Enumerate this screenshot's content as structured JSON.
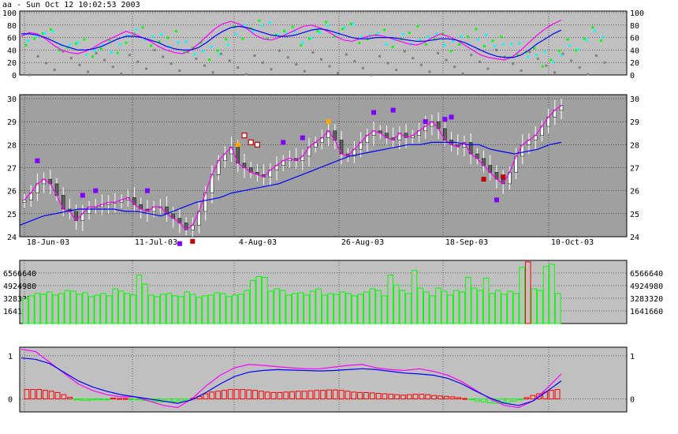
{
  "title": "aa - Sun Oct 12 10:02:53 2003",
  "colors": {
    "panel_bg": "#c0c0c0",
    "price_bg": "#a0a0a0",
    "grid": "#000000",
    "magenta": "#ff00ff",
    "blue": "#0000ff",
    "green": "#00ff00",
    "cyan": "#00ffff",
    "grey_dot": "#808080",
    "purple": "#8000ff",
    "orange": "#ffa500",
    "red": "#c00000",
    "volume_bar": "#00ff00",
    "macd_pos": "#ff0000",
    "macd_neg": "#00ff00"
  },
  "chart_data": [
    {
      "panel": "oscillator",
      "type": "line",
      "ylim": [
        0,
        100
      ],
      "y_ticks": [
        "100",
        "80",
        "60",
        "40",
        "20",
        "0"
      ],
      "series": [
        {
          "color": "#ff00ff",
          "values": [
            62,
            68,
            66,
            58,
            48,
            40,
            36,
            34,
            38,
            44,
            52,
            58,
            64,
            70,
            66,
            60,
            54,
            46,
            40,
            36,
            34,
            40,
            50,
            62,
            74,
            82,
            86,
            82,
            74,
            64,
            58,
            56,
            60,
            66,
            72,
            78,
            80,
            76,
            70,
            62,
            56,
            54,
            58,
            62,
            64,
            62,
            58,
            54,
            50,
            48,
            52,
            60,
            66,
            62,
            56,
            48,
            40,
            32,
            28,
            26,
            24,
            30,
            40,
            52,
            64,
            74,
            82,
            88
          ]
        },
        {
          "color": "#0000ff",
          "values": [
            66,
            66,
            64,
            60,
            54,
            48,
            44,
            40,
            40,
            42,
            46,
            52,
            58,
            62,
            62,
            60,
            56,
            52,
            46,
            42,
            40,
            40,
            44,
            52,
            62,
            70,
            76,
            78,
            76,
            72,
            68,
            64,
            62,
            62,
            64,
            68,
            72,
            74,
            72,
            68,
            64,
            60,
            58,
            58,
            60,
            60,
            60,
            58,
            56,
            54,
            54,
            56,
            58,
            58,
            56,
            52,
            46,
            40,
            34,
            30,
            28,
            28,
            32,
            40,
            50,
            58,
            66,
            72
          ]
        }
      ]
    },
    {
      "panel": "price",
      "type": "candlestick",
      "ylim": [
        24,
        30
      ],
      "y_ticks": [
        "30",
        "29",
        "28",
        "27",
        "26",
        "25",
        "24"
      ],
      "x_labels": [
        "18-Jun-03",
        "11-Jul-03",
        "4-Aug-03",
        "26-Aug-03",
        "18-Sep-03",
        "10-Oct-03"
      ],
      "close": [
        25.6,
        25.9,
        26.3,
        26.5,
        26.3,
        25.8,
        25.2,
        25.1,
        24.7,
        25.0,
        25.3,
        25.3,
        25.4,
        25.5,
        25.5,
        25.6,
        25.7,
        25.4,
        25.2,
        25.1,
        25.3,
        25.3,
        25.0,
        24.8,
        24.6,
        24.3,
        24.5,
        25.1,
        25.9,
        26.7,
        27.3,
        27.6,
        27.9,
        27.2,
        27.0,
        26.8,
        26.7,
        26.6,
        26.9,
        27.1,
        27.3,
        27.4,
        27.3,
        27.5,
        27.9,
        28.1,
        28.3,
        28.6,
        28.2,
        27.6,
        27.5,
        27.8,
        28.1,
        28.4,
        28.6,
        28.5,
        28.3,
        28.2,
        28.5,
        28.3,
        28.4,
        28.6,
        28.8,
        29.0,
        28.7,
        28.2,
        28.0,
        27.9,
        28.1,
        27.6,
        27.4,
        27.1,
        26.8,
        26.5,
        26.3,
        26.8,
        27.5,
        28.0,
        28.2,
        28.4,
        28.8,
        29.2,
        29.5,
        29.7
      ],
      "ma_series": {
        "color": "#0000ff",
        "values": [
          24.5,
          24.7,
          24.9,
          25.0,
          25.1,
          25.2,
          25.2,
          25.2,
          25.2,
          25.1,
          25.1,
          25.0,
          24.9,
          25.1,
          25.3,
          25.5,
          25.6,
          25.7,
          25.9,
          26.0,
          26.1,
          26.2,
          26.3,
          26.5,
          26.7,
          26.9,
          27.1,
          27.3,
          27.5,
          27.6,
          27.7,
          27.8,
          27.9,
          28.0,
          28.0,
          28.1,
          28.1,
          28.1,
          28.0,
          28.0,
          27.8,
          27.7,
          27.6,
          27.7,
          27.8,
          28.0,
          28.1
        ]
      },
      "markers": [
        {
          "kind": "square",
          "color": "#8000ff",
          "x": 2,
          "y": 27.3
        },
        {
          "kind": "square",
          "color": "#8000ff",
          "x": 9,
          "y": 25.8
        },
        {
          "kind": "square",
          "color": "#8000ff",
          "x": 11,
          "y": 26.0
        },
        {
          "kind": "square",
          "color": "#8000ff",
          "x": 19,
          "y": 26.0
        },
        {
          "kind": "square",
          "color": "#8000ff",
          "x": 24,
          "y": 23.7
        },
        {
          "kind": "square",
          "color": "#c00000",
          "x": 26,
          "y": 23.8
        },
        {
          "kind": "square",
          "color": "#ffa500",
          "x": 33,
          "y": 28.0
        },
        {
          "kind": "open-square",
          "color": "#c00000",
          "x": 34,
          "y": 28.4
        },
        {
          "kind": "open-square",
          "color": "#c00000",
          "x": 35,
          "y": 28.1
        },
        {
          "kind": "open-square",
          "color": "#c00000",
          "x": 36,
          "y": 28.0
        },
        {
          "kind": "square",
          "color": "#8000ff",
          "x": 40,
          "y": 28.1
        },
        {
          "kind": "square",
          "color": "#8000ff",
          "x": 43,
          "y": 28.3
        },
        {
          "kind": "square",
          "color": "#ffa500",
          "x": 47,
          "y": 29.0
        },
        {
          "kind": "square",
          "color": "#8000ff",
          "x": 54,
          "y": 29.4
        },
        {
          "kind": "square",
          "color": "#8000ff",
          "x": 57,
          "y": 29.5
        },
        {
          "kind": "square",
          "color": "#8000ff",
          "x": 62,
          "y": 29.0
        },
        {
          "kind": "square",
          "color": "#8000ff",
          "x": 65,
          "y": 29.1
        },
        {
          "kind": "square",
          "color": "#8000ff",
          "x": 66,
          "y": 29.2
        },
        {
          "kind": "square",
          "color": "#c00000",
          "x": 71,
          "y": 26.5
        },
        {
          "kind": "square",
          "color": "#c00000",
          "x": 74,
          "y": 26.6
        },
        {
          "kind": "square",
          "color": "#8000ff",
          "x": 73,
          "y": 25.6
        }
      ]
    },
    {
      "panel": "volume",
      "type": "bar",
      "ylim": [
        0,
        8200000
      ],
      "y_ticks": [
        "6566640",
        "4924980",
        "3283320",
        "1641660"
      ],
      "values": [
        3200000,
        3600000,
        3900000,
        3800000,
        4100000,
        3700000,
        3900000,
        4300000,
        4200000,
        3800000,
        4000000,
        3500000,
        3700000,
        3900000,
        3600000,
        4500000,
        4200000,
        3900000,
        3700000,
        6300000,
        5100000,
        3700000,
        3500000,
        3800000,
        3900000,
        3600000,
        3500000,
        4100000,
        3800000,
        3400000,
        3600000,
        3700000,
        4000000,
        3900000,
        3500000,
        3700000,
        3800000,
        4300000,
        5600000,
        6100000,
        6000000,
        4200000,
        4500000,
        4300000,
        3700000,
        3900000,
        4000000,
        3700000,
        4200000,
        4500000,
        3700000,
        3900000,
        3800000,
        4100000,
        3900000,
        3600000,
        3800000,
        4100000,
        4500000,
        4300000,
        3600000,
        6300000,
        5000000,
        4300000,
        3900000,
        6900000,
        4600000,
        4100000,
        3600000,
        4600000,
        4200000,
        3700000,
        4300000,
        4100000,
        6000000,
        4600000,
        4300000,
        5900000,
        3900000,
        4300000,
        3800000,
        4200000,
        3900000,
        7300000,
        8000000,
        4500000,
        4300000,
        7400000,
        7700000,
        3900000
      ],
      "highlight": [
        {
          "index": 84,
          "color": "#ff0000"
        }
      ]
    },
    {
      "panel": "macd",
      "type": "line",
      "ylim": [
        -0.3,
        1.2
      ],
      "y_ticks": [
        "1",
        "0"
      ],
      "series": [
        {
          "color": "#ff00ff",
          "values": [
            1.15,
            1.1,
            0.85,
            0.6,
            0.35,
            0.2,
            0.1,
            0.05,
            0.05,
            -0.05,
            -0.15,
            -0.2,
            0.0,
            0.3,
            0.55,
            0.72,
            0.8,
            0.78,
            0.75,
            0.72,
            0.7,
            0.7,
            0.74,
            0.78,
            0.8,
            0.72,
            0.68,
            0.66,
            0.7,
            0.64,
            0.55,
            0.4,
            0.2,
            0.0,
            -0.15,
            -0.2,
            -0.05,
            0.25,
            0.58
          ]
        },
        {
          "color": "#0000ff",
          "values": [
            0.95,
            0.92,
            0.82,
            0.62,
            0.42,
            0.28,
            0.18,
            0.1,
            0.05,
            0.0,
            -0.05,
            -0.1,
            -0.02,
            0.15,
            0.35,
            0.52,
            0.62,
            0.66,
            0.68,
            0.67,
            0.66,
            0.65,
            0.66,
            0.68,
            0.7,
            0.68,
            0.64,
            0.6,
            0.58,
            0.55,
            0.48,
            0.35,
            0.18,
            0.02,
            -0.1,
            -0.15,
            -0.05,
            0.18,
            0.42
          ]
        }
      ],
      "histogram": [
        0.22,
        0.22,
        0.22,
        0.2,
        0.18,
        0.15,
        0.1,
        0.04,
        -0.02,
        -0.03,
        -0.03,
        -0.02,
        -0.01,
        -0.01,
        0.02,
        0.01,
        0.01,
        -0.02,
        -0.02,
        -0.03,
        -0.05,
        -0.06,
        -0.07,
        -0.06,
        -0.06,
        -0.05,
        -0.04,
        0.02,
        0.06,
        0.12,
        0.16,
        0.18,
        0.2,
        0.22,
        0.22,
        0.22,
        0.21,
        0.2,
        0.18,
        0.16,
        0.15,
        0.15,
        0.16,
        0.17,
        0.18,
        0.18,
        0.19,
        0.2,
        0.2,
        0.21,
        0.21,
        0.2,
        0.18,
        0.16,
        0.15,
        0.15,
        0.14,
        0.13,
        0.12,
        0.11,
        0.1,
        0.09,
        0.1,
        0.11,
        0.11,
        0.1,
        0.08,
        0.07,
        0.06,
        0.05,
        0.03,
        0.01,
        -0.02,
        -0.05,
        -0.07,
        -0.09,
        -0.1,
        -0.1,
        -0.08,
        -0.05,
        -0.02,
        0.03,
        0.08,
        0.12,
        0.16,
        0.2,
        0.22
      ]
    }
  ]
}
